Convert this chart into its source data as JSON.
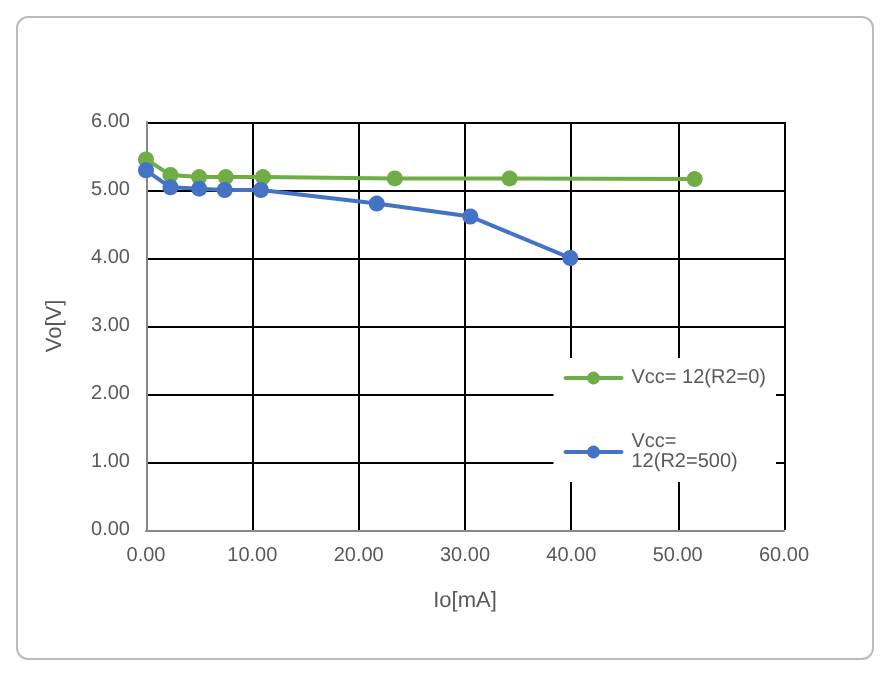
{
  "chart_data": {
    "type": "line",
    "xlabel": "Io[mA]",
    "ylabel": "Vo[V]",
    "xlim": [
      0,
      60
    ],
    "xticks": [
      {
        "value": 0,
        "label": "0.00"
      },
      {
        "value": 10,
        "label": "10.00"
      },
      {
        "value": 20,
        "label": "20.00"
      },
      {
        "value": 30,
        "label": "30.00"
      },
      {
        "value": 40,
        "label": "40.00"
      },
      {
        "value": 50,
        "label": "50.00"
      },
      {
        "value": 60,
        "label": "60.00"
      }
    ],
    "ylim": [
      0,
      6
    ],
    "yticks": [
      {
        "value": 0,
        "label": "0.00"
      },
      {
        "value": 1,
        "label": "1.00"
      },
      {
        "value": 2,
        "label": "2.00"
      },
      {
        "value": 3,
        "label": "3.00"
      },
      {
        "value": 4,
        "label": "4.00"
      },
      {
        "value": 5,
        "label": "5.00"
      },
      {
        "value": 6,
        "label": "6.00"
      }
    ],
    "grid": true,
    "legend": "right",
    "marker": "circle",
    "line_style": "solid",
    "series": [
      {
        "name": "Vcc= 12(R2=0)",
        "color": "#70ad47",
        "x": [
          0,
          2.3,
          5.0,
          7.5,
          11.0,
          23.4,
          34.2,
          51.6
        ],
        "values": [
          5.45,
          5.22,
          5.19,
          5.19,
          5.19,
          5.17,
          5.17,
          5.16
        ]
      },
      {
        "name": "Vcc= 12(R2=500)",
        "color": "#4472c4",
        "x": [
          0,
          2.3,
          5.0,
          7.4,
          10.8,
          21.7,
          30.5,
          39.9
        ],
        "values": [
          5.29,
          5.04,
          5.02,
          5.0,
          5.0,
          4.8,
          4.61,
          4.0
        ]
      }
    ]
  }
}
